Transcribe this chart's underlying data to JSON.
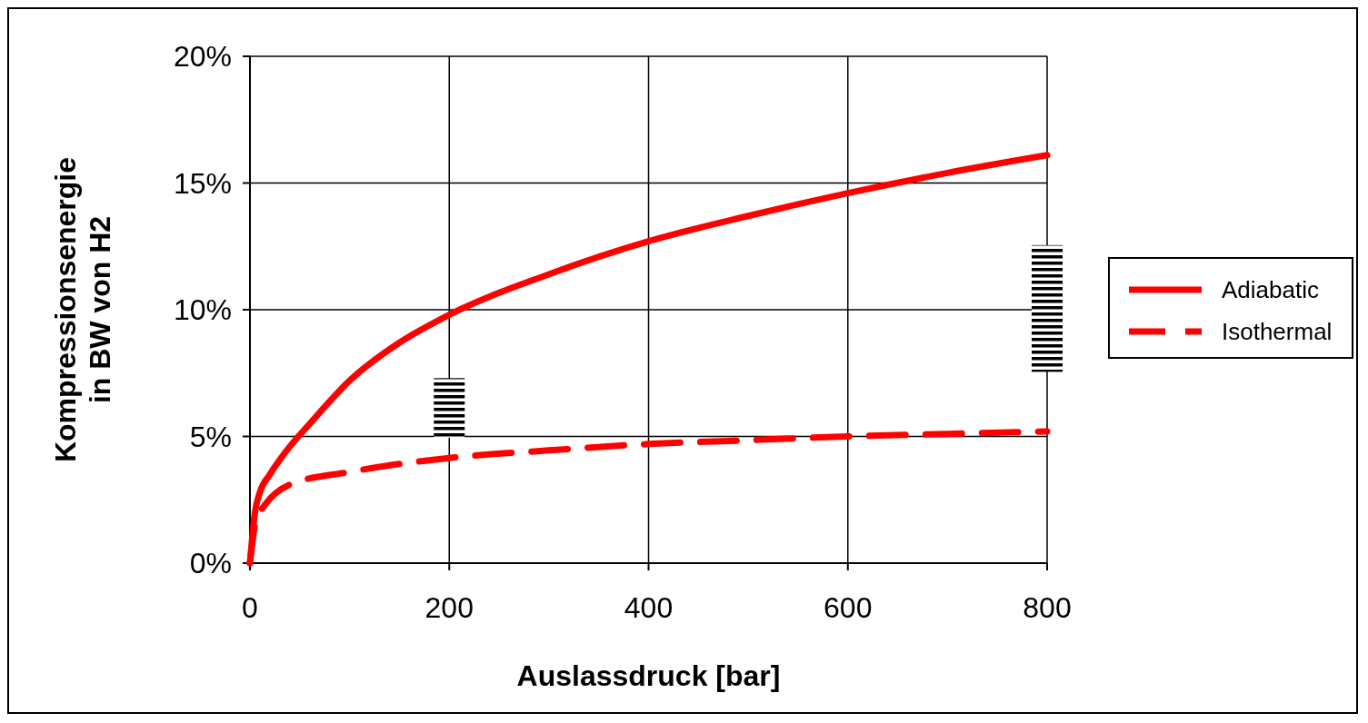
{
  "chart_data": {
    "type": "line",
    "xlabel": "Auslassdruck [bar]",
    "ylabel": "Kompressionsenergie\nin BW von H2",
    "xlim": [
      0,
      800
    ],
    "xticks": [
      0,
      200,
      400,
      600,
      800
    ],
    "ylim": [
      0,
      20
    ],
    "yticks": [
      {
        "value": 0,
        "label": "0%"
      },
      {
        "value": 5,
        "label": "5%"
      },
      {
        "value": 10,
        "label": "10%"
      },
      {
        "value": 15,
        "label": "15%"
      },
      {
        "value": 20,
        "label": "20%"
      }
    ],
    "grid": true,
    "legend": "right",
    "series": [
      {
        "name": "Adiabatic",
        "color": "#ff0000",
        "line_style": "solid",
        "x": [
          0,
          5,
          10,
          20,
          40,
          60,
          100,
          150,
          200,
          300,
          400,
          500,
          600,
          700,
          800
        ],
        "values": [
          0,
          2.0,
          2.8,
          3.5,
          4.6,
          5.5,
          7.2,
          8.7,
          9.8,
          11.4,
          12.7,
          13.7,
          14.6,
          15.4,
          16.1
        ]
      },
      {
        "name": "Isothermal",
        "color": "#ff0000",
        "line_style": "dashed",
        "x": [
          0,
          5,
          10,
          15,
          40,
          100,
          200,
          300,
          400,
          500,
          600,
          700,
          800
        ],
        "values": [
          0,
          1.5,
          2.0,
          2.3,
          3.1,
          3.6,
          4.15,
          4.45,
          4.7,
          4.85,
          5.0,
          5.1,
          5.2
        ]
      },
      {
        "type": "bar",
        "color": "#000000",
        "x": [
          200,
          800
        ],
        "base": [
          4.95,
          7.55
        ],
        "values": [
          2.35,
          5.0
        ]
      }
    ]
  }
}
